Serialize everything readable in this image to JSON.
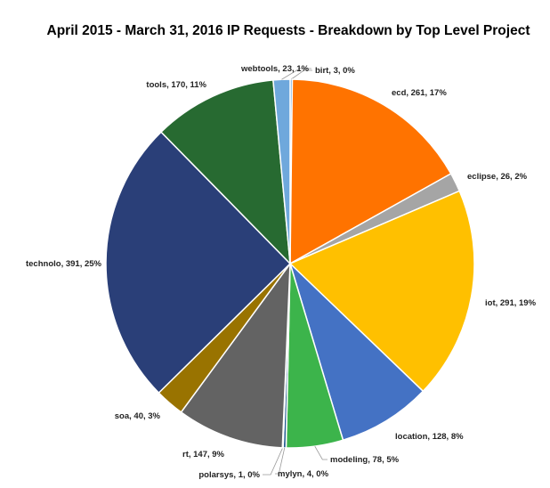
{
  "chart_data": {
    "type": "pie",
    "title": "April 2015 - March 31, 2016 IP Requests - Breakdown by Top Level Project",
    "start": "12 o'clock",
    "direction": "clockwise",
    "slices": [
      {
        "name": "birt",
        "value": 3,
        "percent": "0%",
        "color": "#5B9BD5"
      },
      {
        "name": "ecd",
        "value": 261,
        "percent": "17%",
        "color": "#FF7300"
      },
      {
        "name": "eclipse",
        "value": 26,
        "percent": "2%",
        "color": "#A5A5A5"
      },
      {
        "name": "iot",
        "value": 291,
        "percent": "19%",
        "color": "#FFC000"
      },
      {
        "name": "location",
        "value": 128,
        "percent": "8%",
        "color": "#4472C4"
      },
      {
        "name": "modeling",
        "value": 78,
        "percent": "5%",
        "color": "#3CB44B"
      },
      {
        "name": "mylyn",
        "value": 4,
        "percent": "0%",
        "color": "#255E91"
      },
      {
        "name": "polarsys",
        "value": 1,
        "percent": "0%",
        "color": "#9E9E9E"
      },
      {
        "name": "rt",
        "value": 147,
        "percent": "9%",
        "color": "#636363"
      },
      {
        "name": "soa",
        "value": 40,
        "percent": "3%",
        "color": "#997300"
      },
      {
        "name": "technolo",
        "value": 391,
        "percent": "25%",
        "color": "#2A3F78"
      },
      {
        "name": "tools",
        "value": 170,
        "percent": "11%",
        "color": "#276A31"
      },
      {
        "name": "webtools",
        "value": 23,
        "percent": "1%",
        "color": "#6FA8DC"
      }
    ]
  }
}
